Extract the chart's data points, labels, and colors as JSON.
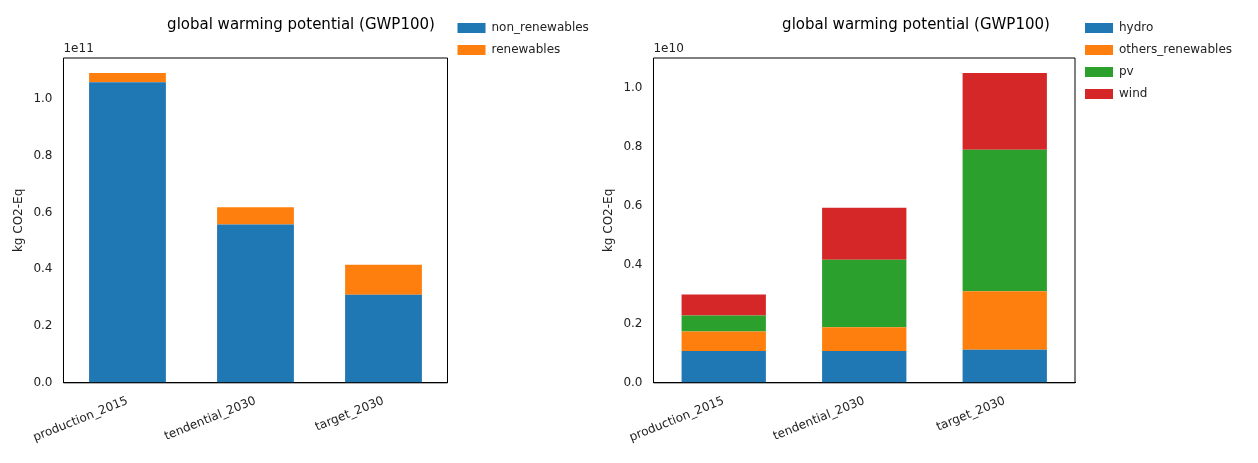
{
  "chart_data": [
    {
      "type": "bar",
      "title": "global warming potential (GWP100)",
      "ylabel": "kg CO2-Eq",
      "annotations": [
        "1e11"
      ],
      "categories": [
        "production_2015",
        "tendential_2030",
        "target_2030"
      ],
      "stacked": true,
      "series": [
        {
          "name": "non_renewables",
          "color": "#1f77b4",
          "values": [
            1.059,
            0.558,
            0.31
          ]
        },
        {
          "name": "renewables",
          "color": "#ff7f0e",
          "values": [
            0.032,
            0.06,
            0.106
          ]
        }
      ],
      "ylim": [
        0,
        1.144
      ],
      "yticks": [
        {
          "value": 0,
          "label": "0.0"
        },
        {
          "value": 0.2,
          "label": "0.2"
        },
        {
          "value": 0.4,
          "label": "0.4"
        },
        {
          "value": 0.6,
          "label": "0.6"
        },
        {
          "value": 0.8,
          "label": "0.8"
        },
        {
          "value": 1,
          "label": "1.0"
        }
      ],
      "grid": false,
      "legend": "top right"
    },
    {
      "type": "bar",
      "title": "global warming potential (GWP100)",
      "ylabel": "kg CO2-Eq",
      "annotations": [
        "1e10"
      ],
      "categories": [
        "production_2015",
        "tendential_2030",
        "target_2030"
      ],
      "stacked": true,
      "series": [
        {
          "name": "hydro",
          "color": "#1f77b4",
          "values": [
            0.108,
            0.108,
            0.112
          ]
        },
        {
          "name": "others_renewables",
          "color": "#ff7f0e",
          "values": [
            0.066,
            0.08,
            0.198
          ]
        },
        {
          "name": "pv",
          "color": "#2ca02c",
          "values": [
            0.054,
            0.229,
            0.479
          ]
        },
        {
          "name": "wind",
          "color": "#d62728",
          "values": [
            0.071,
            0.176,
            0.26
          ]
        }
      ],
      "ylim": [
        0,
        1.1
      ],
      "yticks": [
        {
          "value": 0,
          "label": "0.0"
        },
        {
          "value": 0.2,
          "label": "0.2"
        },
        {
          "value": 0.4,
          "label": "0.4"
        },
        {
          "value": 0.6,
          "label": "0.6"
        },
        {
          "value": 0.8,
          "label": "0.8"
        },
        {
          "value": 1,
          "label": "1.0"
        }
      ],
      "grid": false,
      "legend": "top right"
    }
  ]
}
